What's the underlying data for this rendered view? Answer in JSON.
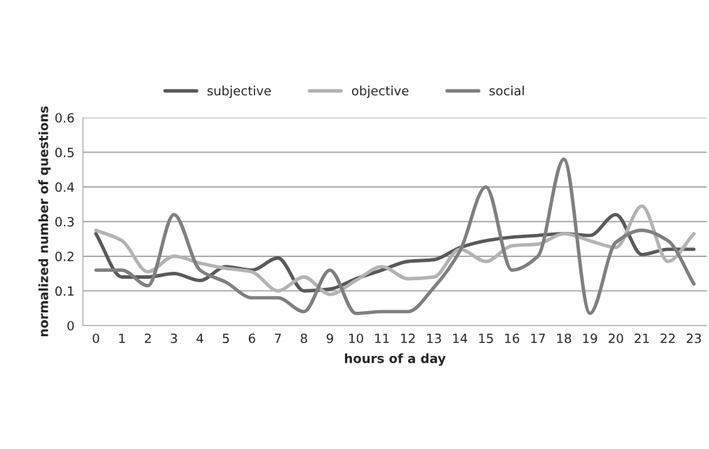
{
  "chart_data": {
    "type": "line",
    "xlabel": "hours of a day",
    "ylabel": "normalized number of questions",
    "categories": [
      "0",
      "1",
      "2",
      "3",
      "4",
      "5",
      "6",
      "7",
      "8",
      "9",
      "10",
      "11",
      "12",
      "13",
      "14",
      "15",
      "16",
      "17",
      "18",
      "19",
      "20",
      "21",
      "22",
      "23"
    ],
    "series": [
      {
        "name": "subjective",
        "color": "#595959",
        "values": [
          0.265,
          0.14,
          0.14,
          0.15,
          0.13,
          0.17,
          0.16,
          0.195,
          0.1,
          0.105,
          0.135,
          0.16,
          0.185,
          0.19,
          0.225,
          0.245,
          0.255,
          0.26,
          0.265,
          0.26,
          0.32,
          0.205,
          0.22,
          0.22
        ]
      },
      {
        "name": "objective",
        "color": "#b3b3b3",
        "values": [
          0.275,
          0.245,
          0.155,
          0.2,
          0.18,
          0.165,
          0.155,
          0.1,
          0.14,
          0.09,
          0.13,
          0.17,
          0.135,
          0.14,
          0.22,
          0.185,
          0.23,
          0.235,
          0.265,
          0.245,
          0.225,
          0.345,
          0.185,
          0.265
        ]
      },
      {
        "name": "social",
        "color": "#7f7f7f",
        "values": [
          0.16,
          0.16,
          0.115,
          0.32,
          0.16,
          0.125,
          0.08,
          0.08,
          0.04,
          0.16,
          0.035,
          0.04,
          0.04,
          0.11,
          0.215,
          0.4,
          0.16,
          0.2,
          0.48,
          0.035,
          0.24,
          0.275,
          0.245,
          0.12
        ]
      }
    ],
    "ylim": [
      0,
      0.6
    ],
    "yticks": [
      0,
      0.1,
      0.2,
      0.3,
      0.4,
      0.5,
      0.6
    ],
    "grid": "y",
    "legend": "top",
    "marker": "none",
    "line_style": "solid"
  }
}
